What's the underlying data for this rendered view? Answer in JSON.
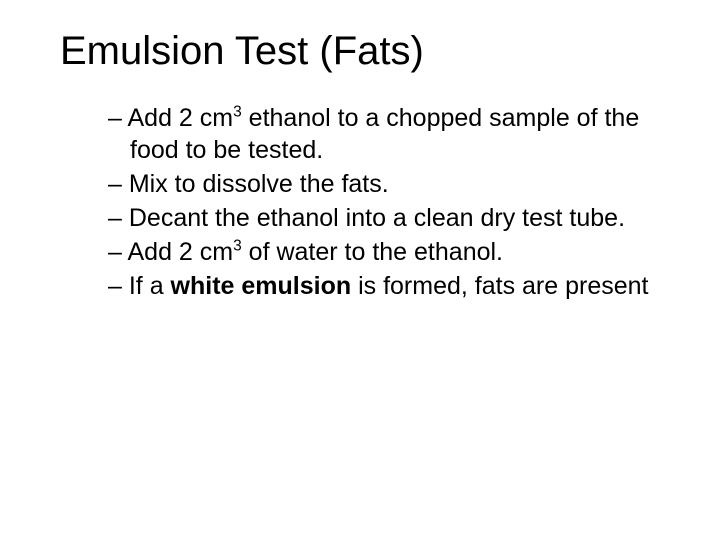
{
  "slide": {
    "background_color": "#ffffff",
    "text_color": "#000000",
    "font_family": "Comic Sans MS",
    "title": "Emulsion Test (Fats)",
    "title_fontsize": 40,
    "body_fontsize": 25,
    "bullet_glyph": "–",
    "bullets": [
      {
        "pre": "Add 2 cm",
        "sup": "3",
        "post": " ethanol to a chopped sample of the food to be tested."
      },
      {
        "text": "Mix to dissolve the fats."
      },
      {
        "text": "Decant the ethanol into a clean dry test tube."
      },
      {
        "pre": "Add 2 cm",
        "sup": "3",
        "post": " of water to the ethanol."
      },
      {
        "pre": "If a ",
        "bold": "white emulsion",
        "post": " is formed, fats are present"
      }
    ]
  }
}
